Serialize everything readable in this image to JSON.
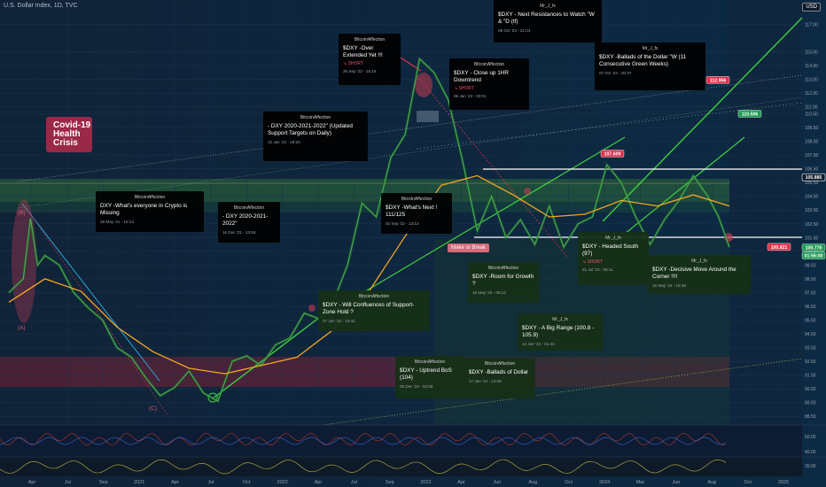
{
  "header": {
    "title": "U.S. Dollar Index, 1D, TVC"
  },
  "currency_button": "USD",
  "covid_label": "Covid-19\nHealth\nCrisis",
  "make_or_break": "Make or Break",
  "wave_labels": [
    "(B)",
    "(A)",
    "(C)"
  ],
  "price_tags": [
    {
      "text": "112.956",
      "price": 112.956,
      "color": "#e0314b"
    },
    {
      "text": "110.506",
      "price": 110.506,
      "color": "#1f9e55"
    },
    {
      "text": "107.609",
      "price": 107.609,
      "color": "#e0314b"
    },
    {
      "text": "105.885",
      "price": 105.885,
      "color": "#0c1a2b"
    },
    {
      "text": "100.821",
      "price": 100.821,
      "color": "#e0314b"
    },
    {
      "text": "100.776",
      "price": 100.776,
      "color": "#1f9e55"
    },
    {
      "text": "01:56:00",
      "price": 100.2,
      "color": "#1f9e55"
    }
  ],
  "ideas": [
    {
      "author": "BitcoinAffection",
      "title": "$DXY -Over Extended Yet !!!",
      "short": "↘ SHORT",
      "date": "26 Sep '22 - 15:19",
      "style": "black"
    },
    {
      "author": "Mr_J_fx",
      "title": "$DXY - Next Resistances to Watch \"W & \"D (tf)",
      "short": "",
      "date": "08 Oct '23 - 21:04",
      "style": "black"
    },
    {
      "author": "BitcoinAffection",
      "title": "$DXY - Close up 1HR Downtrend",
      "short": "↘ SHORT",
      "date": "06 Jan '23 - 00:01",
      "style": "black"
    },
    {
      "author": "Mr_J_fx",
      "title": "$DXY -Ballads of the Dollar \"W (11 Consecutive Green Weeks)",
      "short": "",
      "date": "07 Oct '23 - 20:37",
      "style": "black"
    },
    {
      "author": "BitcoinAffection",
      "title": "- DXY 2020-2021-2022\" (Updated Support Targets on Daily)",
      "short": "",
      "date": "12 Jan '22 - 18:20",
      "style": "black"
    },
    {
      "author": "BitcoinAffection",
      "title": "DXY -What's everyone in Crypto is Missing",
      "short": "",
      "date": "28 May '21 - 15:13",
      "style": "black"
    },
    {
      "author": "BitcoinAffection",
      "title": "- DXY 2020-2021-2022\"",
      "short": "",
      "date": "16 Dec '21 - 13:55",
      "style": "black"
    },
    {
      "author": "BitcoinAffection",
      "title": "$DXY -What's Next ! 111/125",
      "short": "",
      "date": "02 Sep '22 - 13:13",
      "style": "black"
    },
    {
      "author": "BitcoinAffection",
      "title": "$DXY -Room for Growth ?",
      "short": "",
      "date": "16 May '23 - 08:12",
      "style": "green"
    },
    {
      "author": "Mr_J_fx",
      "title": "$DXY - Headed South (97)",
      "short": "↘ SHORT",
      "date": "21 Jul '23 - 08:11",
      "style": "green"
    },
    {
      "author": "Mr_J_fx",
      "title": "$DXY -Decisive Move Around the Corner !!!!",
      "short": "",
      "date": "16 May '24 - 16:38",
      "style": "green"
    },
    {
      "author": "BitcoinAffection",
      "title": "$DXY - Will Confluences of Support-Zone Hold ?",
      "short": "",
      "date": "27 Jan '22 - 19:42",
      "style": "green"
    },
    {
      "author": "Mr_J_fx",
      "title": "$DXY - A Big Range (100.8 - 105.9)",
      "short": "",
      "date": "12 Jan '23 - 01:43",
      "style": "green"
    },
    {
      "author": "BitcoinAffection",
      "title": "$DXY - Uptrend BoS (104)",
      "short": "",
      "date": "05 Dec '22 - 02:58",
      "style": "green"
    },
    {
      "author": "BitcoinAffection",
      "title": "$DXY -Ballads of Dollar",
      "short": "",
      "date": "17 Jan '23 - 12:09",
      "style": "green"
    }
  ],
  "chart_data": {
    "type": "line",
    "title": "U.S. Dollar Index, 1D, TVC",
    "xlabel": "",
    "ylabel": "",
    "x_ticks": [
      "Apr",
      "Jul",
      "Sep",
      "2021",
      "Apr",
      "Jul",
      "Oct",
      "2022",
      "Apr",
      "Jul",
      "Sep",
      "2023",
      "Apr",
      "Jun",
      "Aug",
      "Oct",
      "2024",
      "Mar",
      "Jun",
      "Aug",
      "Oct",
      "2025"
    ],
    "y_ticks": [
      88.5,
      89.5,
      90.5,
      91.5,
      92.5,
      93.5,
      94.5,
      95.5,
      96.5,
      97.5,
      98.5,
      99.5,
      100.5,
      101.5,
      102.5,
      103.5,
      104.5,
      105.5,
      106.5,
      107.5,
      108.5,
      109.5,
      110.5,
      111.0,
      112.0,
      113.0,
      114.0,
      115.0,
      117.0
    ],
    "ylim": [
      88.0,
      118.0
    ],
    "oscillator_ticks": [
      50.0,
      40.0,
      30.0
    ],
    "series": [
      {
        "name": "",
        "color": "#4caf50",
        "values": [
          [
            0.0,
            97.5
          ],
          [
            0.02,
            98.5
          ],
          [
            0.03,
            102.9
          ],
          [
            0.04,
            99.5
          ],
          [
            0.05,
            100.2
          ],
          [
            0.07,
            99.5
          ],
          [
            0.09,
            97.5
          ],
          [
            0.11,
            96.4
          ],
          [
            0.13,
            95.5
          ],
          [
            0.15,
            93.5
          ],
          [
            0.17,
            92.8
          ],
          [
            0.19,
            91.3
          ],
          [
            0.21,
            90.0
          ],
          [
            0.23,
            90.6
          ],
          [
            0.25,
            91.8
          ],
          [
            0.27,
            90.2
          ],
          [
            0.29,
            89.6
          ],
          [
            0.31,
            92.5
          ],
          [
            0.33,
            92.9
          ],
          [
            0.35,
            92.2
          ],
          [
            0.37,
            93.7
          ],
          [
            0.39,
            94.2
          ],
          [
            0.41,
            96.0
          ],
          [
            0.43,
            95.6
          ],
          [
            0.45,
            96.8
          ],
          [
            0.47,
            99.5
          ],
          [
            0.49,
            104.0
          ],
          [
            0.51,
            103.0
          ],
          [
            0.53,
            107.3
          ],
          [
            0.55,
            109.0
          ],
          [
            0.57,
            114.5
          ],
          [
            0.59,
            113.5
          ],
          [
            0.61,
            111.5
          ],
          [
            0.63,
            107.0
          ],
          [
            0.65,
            102.0
          ],
          [
            0.67,
            104.5
          ],
          [
            0.69,
            101.5
          ],
          [
            0.71,
            102.8
          ],
          [
            0.73,
            101.0
          ],
          [
            0.75,
            103.8
          ],
          [
            0.77,
            100.8
          ],
          [
            0.79,
            102.5
          ],
          [
            0.81,
            103.0
          ],
          [
            0.83,
            106.8
          ],
          [
            0.85,
            105.5
          ],
          [
            0.87,
            103.0
          ],
          [
            0.89,
            101.0
          ],
          [
            0.91,
            102.8
          ],
          [
            0.93,
            104.2
          ],
          [
            0.95,
            106.0
          ],
          [
            0.97,
            104.5
          ],
          [
            0.985,
            103.0
          ],
          [
            1.0,
            100.8
          ]
        ]
      },
      {
        "name": "",
        "color": "#f5a623",
        "values": [
          [
            0.0,
            96.8
          ],
          [
            0.05,
            98.5
          ],
          [
            0.1,
            97.6
          ],
          [
            0.15,
            95.0
          ],
          [
            0.2,
            93.2
          ],
          [
            0.25,
            92.0
          ],
          [
            0.3,
            91.6
          ],
          [
            0.35,
            92.2
          ],
          [
            0.4,
            92.8
          ],
          [
            0.45,
            94.8
          ],
          [
            0.5,
            97.6
          ],
          [
            0.55,
            101.6
          ],
          [
            0.6,
            105.3
          ],
          [
            0.65,
            106.0
          ],
          [
            0.7,
            104.6
          ],
          [
            0.75,
            103.0
          ],
          [
            0.8,
            103.2
          ],
          [
            0.85,
            104.2
          ],
          [
            0.9,
            103.8
          ],
          [
            0.95,
            104.6
          ],
          [
            1.0,
            103.8
          ]
        ]
      }
    ]
  }
}
